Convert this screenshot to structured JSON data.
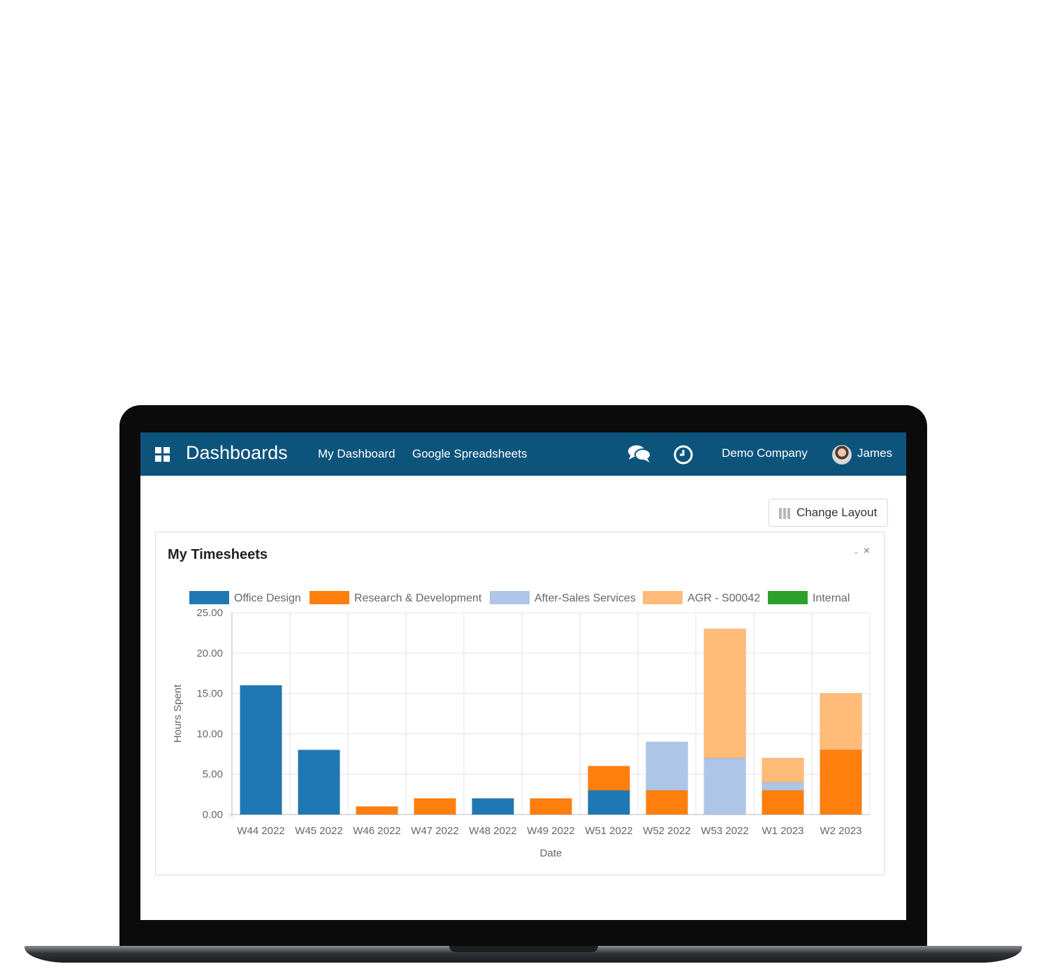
{
  "navbar": {
    "app_title": "Dashboards",
    "links": [
      "My Dashboard",
      "Google Spreadsheets"
    ],
    "company": "Demo Company",
    "user": "James",
    "icons": [
      "apps-grid-icon",
      "chat-icon",
      "clock-icon",
      "avatar"
    ]
  },
  "toolbar": {
    "change_layout_label": "Change Layout"
  },
  "panel": {
    "title": "My Timesheets",
    "minimize": "-",
    "close": "×"
  },
  "colors": {
    "navbar_bg": "#0d547c",
    "Office Design": "#1f77b4",
    "Research & Development": "#ff7f0e",
    "After-Sales Services": "#aec7e8",
    "AGR - S00042": "#ffbb78",
    "Internal": "#2ca02c"
  },
  "chart_data": {
    "type": "bar",
    "stacked": true,
    "xlabel": "Date",
    "ylabel": "Hours Spent",
    "ylim": [
      0,
      25
    ],
    "yticks": [
      "0.00",
      "5.00",
      "10.00",
      "15.00",
      "20.00",
      "25.00"
    ],
    "legend_position": "top",
    "grid": true,
    "categories": [
      "W44 2022",
      "W45 2022",
      "W46 2022",
      "W47 2022",
      "W48 2022",
      "W49 2022",
      "W51 2022",
      "W52 2022",
      "W53 2022",
      "W1 2023",
      "W2 2023"
    ],
    "series": [
      {
        "name": "Office Design",
        "color": "#1f77b4",
        "values": [
          16,
          8,
          0,
          0,
          2,
          0,
          3,
          0,
          0,
          0,
          0
        ]
      },
      {
        "name": "Research & Development",
        "color": "#ff7f0e",
        "values": [
          0,
          0,
          1,
          2,
          0,
          2,
          3,
          3,
          0,
          3,
          8
        ]
      },
      {
        "name": "After-Sales Services",
        "color": "#aec7e8",
        "values": [
          0,
          0,
          0,
          0,
          0,
          0,
          0,
          6,
          7,
          1,
          0
        ]
      },
      {
        "name": "AGR - S00042",
        "color": "#ffbb78",
        "values": [
          0,
          0,
          0,
          0,
          0,
          0,
          0,
          0,
          16,
          3,
          7
        ]
      },
      {
        "name": "Internal",
        "color": "#2ca02c",
        "values": [
          0,
          0,
          0,
          0,
          0,
          0,
          0,
          0,
          0,
          0,
          0
        ]
      }
    ]
  }
}
